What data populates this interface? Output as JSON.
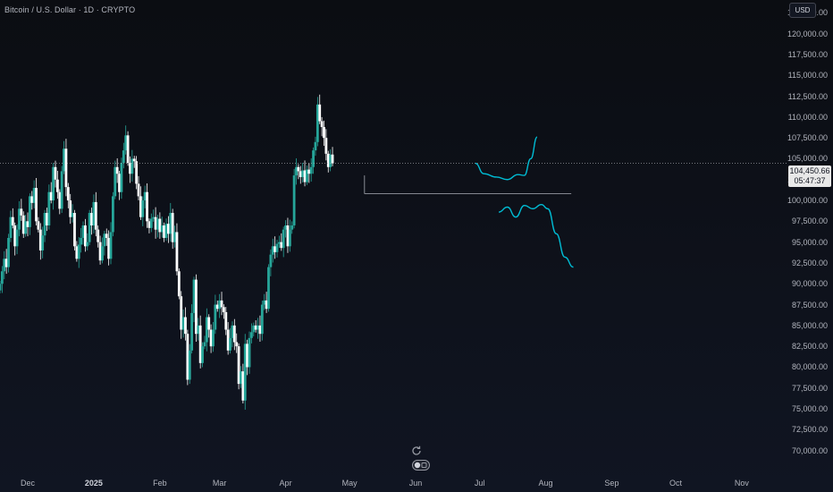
{
  "title": "Bitcoin / U.S. Dollar · 1D · CRYPTO",
  "currency_button": "USD",
  "current_price": "104,450.66",
  "countdown": "05:47:37",
  "colors": {
    "background": "#0b0d12",
    "up": "#26a69a",
    "down": "#ffffff",
    "projection": "#00bcd4",
    "level_line": "#9598a1",
    "price_label_bg": "#e8e8e8"
  },
  "y_ticks": [
    "122,500.00",
    "120,000.00",
    "117,500.00",
    "115,000.00",
    "112,500.00",
    "110,000.00",
    "107,500.00",
    "105,000.00",
    "102,500.00",
    "100,000.00",
    "97,500.00",
    "95,000.00",
    "92,500.00",
    "90,000.00",
    "87,500.00",
    "85,000.00",
    "82,500.00",
    "80,000.00",
    "77,500.00",
    "75,000.00",
    "72,500.00",
    "70,000.00"
  ],
  "x_ticks": [
    {
      "label": "Dec",
      "bold": false
    },
    {
      "label": "2025",
      "bold": true
    },
    {
      "label": "Feb",
      "bold": false
    },
    {
      "label": "Mar",
      "bold": false
    },
    {
      "label": "Apr",
      "bold": false
    },
    {
      "label": "May",
      "bold": false
    },
    {
      "label": "Jun",
      "bold": false
    },
    {
      "label": "Jul",
      "bold": false
    },
    {
      "label": "Aug",
      "bold": false
    },
    {
      "label": "Sep",
      "bold": false
    },
    {
      "label": "Oct",
      "bold": false
    },
    {
      "label": "Nov",
      "bold": false
    }
  ],
  "icons": {
    "replay": "replay-icon",
    "toggle": "toggle-icon"
  },
  "chart_data": {
    "type": "candlestick",
    "symbol": "BTCUSD",
    "interval": "1D",
    "ylim": [
      69000,
      123500
    ],
    "x_range": [
      "2024-11-18",
      "2025-11-22"
    ],
    "candle_closes": [
      90000,
      91500,
      93000,
      92000,
      95500,
      98000,
      97000,
      94500,
      96500,
      99000,
      98200,
      96000,
      97500,
      96800,
      100500,
      99700,
      101500,
      97500,
      96500,
      94000,
      95800,
      98500,
      97000,
      101000,
      100000,
      104000,
      102500,
      101000,
      99000,
      103500,
      106200,
      101600,
      100000,
      98000,
      98500,
      94500,
      93000,
      94700,
      95500,
      97000,
      94500,
      95000,
      98500,
      97000,
      99800,
      96500,
      95000,
      92800,
      94500,
      96000,
      95500,
      93000,
      96200,
      100500,
      104000,
      103200,
      101000,
      104500,
      106000,
      107800,
      104500,
      103200,
      105000,
      104700,
      102000,
      100500,
      98000,
      100000,
      101000,
      97500,
      96700,
      97800,
      98000,
      96500,
      97800,
      96200,
      97000,
      95500,
      97200,
      96000,
      98500,
      95000,
      96200,
      91500,
      88500,
      84500,
      86000,
      84000,
      78500,
      82000,
      86500,
      90500,
      84000,
      85000,
      80500,
      82500,
      83000,
      86000,
      84500,
      82500,
      84500,
      87500,
      87000,
      88000,
      87200,
      86600,
      84500,
      82000,
      83500,
      85000,
      83000,
      82500,
      78000,
      79500,
      76000,
      82800,
      80000,
      83500,
      84200,
      85000,
      84500,
      85000,
      84000,
      87500,
      88000,
      87000,
      92000,
      93500,
      94500,
      93800,
      94800,
      95000,
      94300,
      96500,
      97000,
      94500,
      96500,
      97000,
      103000,
      104000,
      103500,
      102800,
      103600,
      102200,
      103700,
      103200,
      104000,
      106000,
      107000,
      111500,
      109500,
      108800,
      107500,
      105600,
      104000,
      105500,
      104450
    ],
    "projection_up_path": [
      {
        "date": "2025-06-29",
        "price": 104450
      },
      {
        "date": "2025-07-03",
        "price": 103200
      },
      {
        "date": "2025-07-09",
        "price": 102800
      },
      {
        "date": "2025-07-14",
        "price": 102500
      },
      {
        "date": "2025-07-19",
        "price": 103100
      },
      {
        "date": "2025-07-22",
        "price": 103000
      },
      {
        "date": "2025-07-25",
        "price": 105000
      },
      {
        "date": "2025-07-28",
        "price": 107600
      }
    ],
    "projection_down_path": [
      {
        "date": "2025-07-10",
        "price": 98600
      },
      {
        "date": "2025-07-14",
        "price": 99200
      },
      {
        "date": "2025-07-18",
        "price": 98000
      },
      {
        "date": "2025-07-22",
        "price": 99400
      },
      {
        "date": "2025-07-26",
        "price": 99000
      },
      {
        "date": "2025-07-30",
        "price": 99500
      },
      {
        "date": "2025-08-02",
        "price": 99000
      },
      {
        "date": "2025-08-06",
        "price": 96000
      },
      {
        "date": "2025-08-10",
        "price": 93200
      },
      {
        "date": "2025-08-14",
        "price": 92000
      }
    ],
    "horizontal_level": {
      "price": 100800,
      "from": "2025-05-08",
      "to": "2025-08-13"
    },
    "current_price_line": 104450.66
  }
}
